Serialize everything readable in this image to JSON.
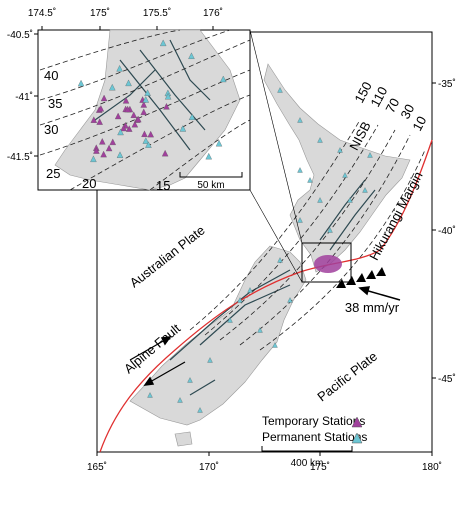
{
  "main_map": {
    "x_ticks": [
      "165˚",
      "170˚",
      "175˚",
      "180˚"
    ],
    "y_ticks": [
      "-35˚",
      "-40˚",
      "-45˚"
    ],
    "labels": {
      "australian_plate": "Australian Plate",
      "pacific_plate": "Pacific Plate",
      "alpine_fault": "Alpine Fault",
      "hikurangi_margin": "Hikurangi Margin",
      "nisb": "NISB",
      "rate": "38 mm/yr"
    },
    "contour_labels": [
      "150",
      "110",
      "70",
      "30",
      "10"
    ],
    "scale_bar": "400 km",
    "legend": [
      "Temporary Stations",
      "Permanent Stations"
    ]
  },
  "inset_map": {
    "x_ticks": [
      "174.5˚",
      "175˚",
      "175.5˚",
      "176˚"
    ],
    "y_ticks": [
      "-40.5˚",
      "-41˚",
      "-41.5˚"
    ],
    "contour_labels": [
      "40",
      "35",
      "30",
      "25",
      "20",
      "15"
    ],
    "scale_bar": "50 km"
  }
}
